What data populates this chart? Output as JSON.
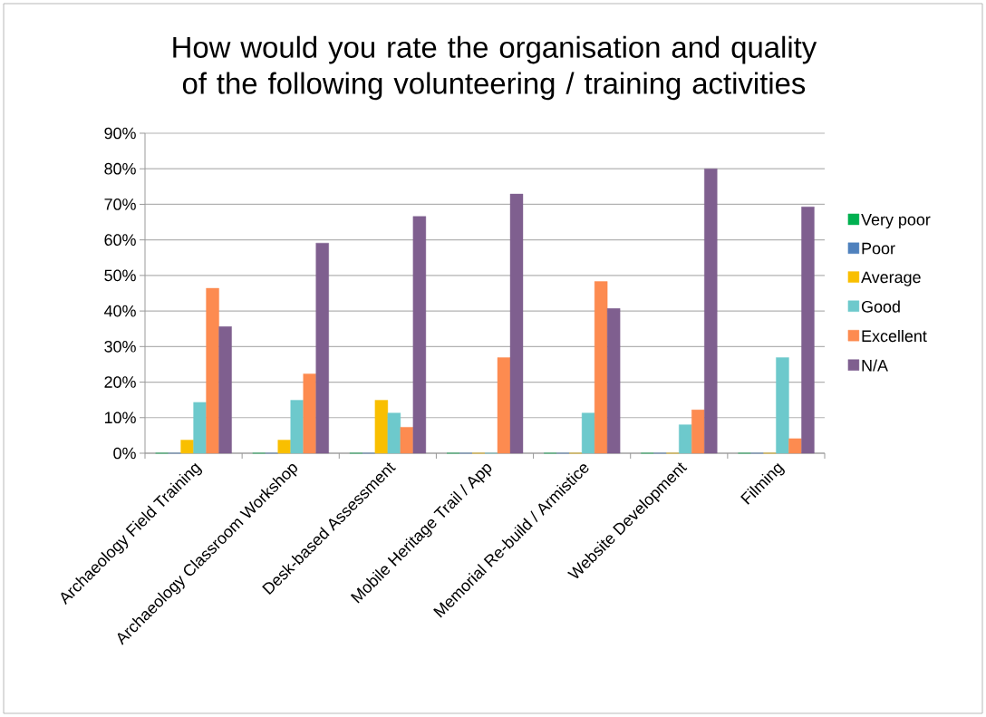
{
  "chart_data": {
    "type": "bar",
    "title": "How would you rate the organisation and quality of the following volunteering / training activities",
    "categories": [
      "Archaeology Field Training",
      "Archaeology Classroom Workshop",
      "Desk-based Assessment",
      "Mobile Heritage Trail / App",
      "Memorial Re-build / Armistice",
      "Website Development",
      "Filming"
    ],
    "series": [
      {
        "name": "Very poor",
        "color": "#00b050",
        "values": [
          0,
          0,
          0,
          0,
          0,
          0,
          0
        ]
      },
      {
        "name": "Poor",
        "color": "#4f81bd",
        "values": [
          0,
          0,
          0,
          0,
          0,
          0,
          0
        ]
      },
      {
        "name": "Average",
        "color": "#f9bf00",
        "values": [
          3.7,
          3.7,
          14.9,
          0,
          0,
          0,
          0
        ]
      },
      {
        "name": "Good",
        "color": "#6dc9cc",
        "values": [
          14.3,
          14.9,
          11.3,
          0,
          11.3,
          8.0,
          26.9
        ]
      },
      {
        "name": "Excellent",
        "color": "#fd8b50",
        "values": [
          46.4,
          22.3,
          7.3,
          26.9,
          48.3,
          12.2,
          4.1
        ]
      },
      {
        "name": "N/A",
        "color": "#7f5f8f",
        "values": [
          35.6,
          59.1,
          66.6,
          72.9,
          40.7,
          80.0,
          69.3
        ]
      }
    ],
    "ylim": [
      0,
      90
    ],
    "yticks": [
      {
        "value": 0,
        "label": "0%"
      },
      {
        "value": 10,
        "label": "10%"
      },
      {
        "value": 20,
        "label": "20%"
      },
      {
        "value": 30,
        "label": "30%"
      },
      {
        "value": 40,
        "label": "40%"
      },
      {
        "value": 50,
        "label": "50%"
      },
      {
        "value": 60,
        "label": "60%"
      },
      {
        "value": 70,
        "label": "70%"
      },
      {
        "value": 80,
        "label": "80%"
      },
      {
        "value": 90,
        "label": "90%"
      }
    ],
    "grid": "y",
    "legend": "right"
  }
}
